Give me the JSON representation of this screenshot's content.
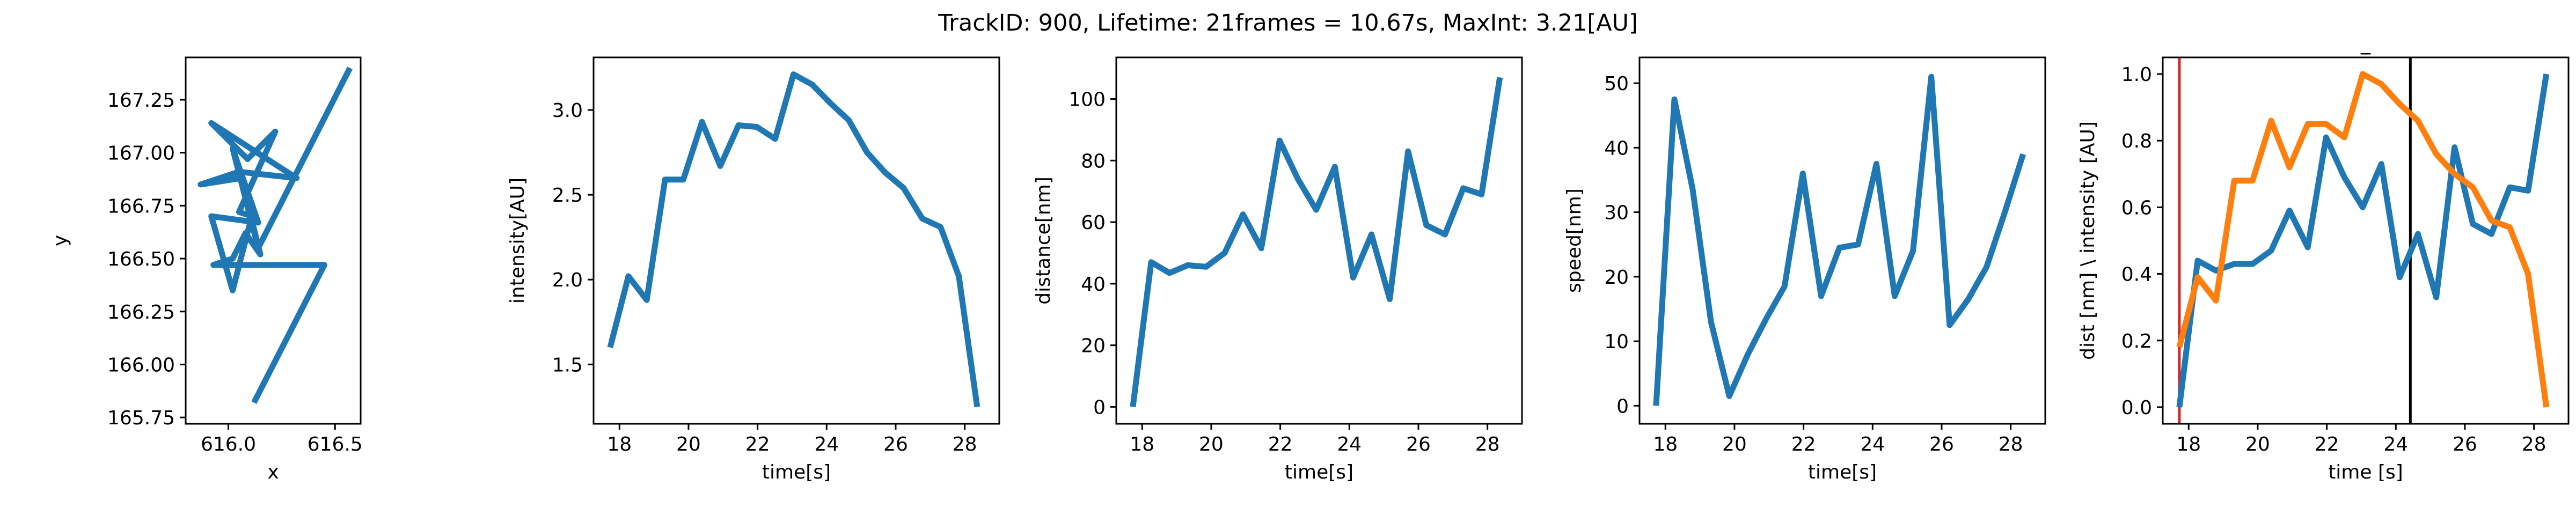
{
  "figure": {
    "title": "TrackID: 900, Lifetime: 21frames = 10.67s, MaxInt: 3.21[AU]"
  },
  "colors": {
    "blue": "#1f77b4",
    "orange": "#ff7f0e",
    "red": "#d62728",
    "black": "#000000"
  },
  "chart_data": [
    {
      "type": "line",
      "title": "",
      "xlabel": "x",
      "ylabel": "y",
      "xlim": [
        615.8,
        616.62
      ],
      "ylim": [
        165.72,
        167.45
      ],
      "xticks": [
        616.0,
        616.5
      ],
      "xtick_labels": [
        "616.0",
        "616.5"
      ],
      "yticks": [
        165.75,
        166.0,
        166.25,
        166.5,
        166.75,
        167.0,
        167.25
      ],
      "ytick_labels": [
        "165.75",
        "166.00",
        "166.25",
        "166.50",
        "166.75",
        "167.00",
        "167.25"
      ],
      "series": [
        {
          "color": "#1f77b4",
          "x": [
            616.12,
            616.45,
            615.93,
            616.02,
            616.08,
            616.15,
            616.06,
            615.87,
            616.05,
            616.32,
            615.92,
            616.09,
            616.22,
            616.05,
            616.11,
            616.02,
            615.92,
            616.14,
            616.02,
            616.14,
            616.57
          ],
          "y": [
            165.82,
            166.47,
            166.47,
            166.5,
            166.62,
            166.52,
            166.88,
            166.85,
            166.91,
            166.88,
            167.14,
            166.97,
            167.1,
            166.72,
            166.7,
            166.35,
            166.7,
            166.67,
            167.02,
            166.55,
            167.4
          ]
        }
      ]
    },
    {
      "type": "line",
      "title": "",
      "xlabel": "time[s]",
      "ylabel": "intensity[AU]",
      "xlim": [
        17.25,
        29.0
      ],
      "ylim": [
        1.15,
        3.31
      ],
      "xticks": [
        18,
        20,
        22,
        24,
        26,
        28
      ],
      "xtick_labels": [
        "18",
        "20",
        "22",
        "24",
        "26",
        "28"
      ],
      "yticks": [
        1.5,
        2.0,
        2.5,
        3.0
      ],
      "ytick_labels": [
        "1.5",
        "2.0",
        "2.5",
        "3.0"
      ],
      "series": [
        {
          "color": "#1f77b4",
          "x": [
            17.73,
            18.26,
            18.79,
            19.32,
            19.85,
            20.39,
            20.92,
            21.45,
            21.98,
            22.51,
            23.04,
            23.58,
            24.11,
            24.64,
            25.17,
            25.7,
            26.23,
            26.77,
            27.3,
            27.83,
            28.36
          ],
          "y": [
            1.6,
            2.02,
            1.88,
            2.59,
            2.59,
            2.93,
            2.67,
            2.91,
            2.9,
            2.83,
            3.21,
            3.15,
            3.04,
            2.94,
            2.75,
            2.63,
            2.54,
            2.36,
            2.31,
            2.02,
            1.25
          ]
        }
      ]
    },
    {
      "type": "line",
      "title": "",
      "xlabel": "time[s]",
      "ylabel": "distance[nm]",
      "xlim": [
        17.25,
        29.0
      ],
      "ylim": [
        -5.5,
        113.5
      ],
      "xticks": [
        18,
        20,
        22,
        24,
        26,
        28
      ],
      "xtick_labels": [
        "18",
        "20",
        "22",
        "24",
        "26",
        "28"
      ],
      "yticks": [
        0,
        20,
        40,
        60,
        80,
        100
      ],
      "ytick_labels": [
        "0",
        "20",
        "40",
        "60",
        "80",
        "100"
      ],
      "series": [
        {
          "color": "#1f77b4",
          "x": [
            17.73,
            18.26,
            18.79,
            19.32,
            19.85,
            20.39,
            20.92,
            21.45,
            21.98,
            22.51,
            23.04,
            23.58,
            24.11,
            24.64,
            25.17,
            25.7,
            26.23,
            26.77,
            27.3,
            27.83,
            28.36
          ],
          "y": [
            0,
            47,
            43.5,
            46,
            45.5,
            50,
            62.5,
            51.5,
            86.5,
            74,
            64,
            78,
            42,
            56,
            35,
            83,
            59,
            56,
            71,
            69,
            107
          ]
        }
      ]
    },
    {
      "type": "line",
      "title": "",
      "xlabel": "time[s]",
      "ylabel": "speed[nm]",
      "xlim": [
        17.25,
        29.0
      ],
      "ylim": [
        -2.8,
        54.0
      ],
      "xticks": [
        18,
        20,
        22,
        24,
        26,
        28
      ],
      "xtick_labels": [
        "18",
        "20",
        "22",
        "24",
        "26",
        "28"
      ],
      "yticks": [
        0,
        10,
        20,
        30,
        40,
        50
      ],
      "ytick_labels": [
        "0",
        "10",
        "20",
        "30",
        "40",
        "50"
      ],
      "series": [
        {
          "color": "#1f77b4",
          "x": [
            17.73,
            18.26,
            18.79,
            19.32,
            19.85,
            20.39,
            20.92,
            21.45,
            21.98,
            22.51,
            23.04,
            23.58,
            24.11,
            24.64,
            25.17,
            25.7,
            26.23,
            26.77,
            27.3,
            27.83,
            28.36
          ],
          "y": [
            0,
            47.5,
            33.5,
            13,
            1.5,
            8,
            13.5,
            18.5,
            36,
            17,
            24.5,
            25,
            37.5,
            17,
            24,
            51,
            12.5,
            16.5,
            21.5,
            30,
            39
          ]
        }
      ]
    },
    {
      "type": "line",
      "title": "_",
      "xlabel": "time [s]",
      "ylabel": "dist [nm] \\ intensity [AU]",
      "xlim": [
        17.25,
        29.0
      ],
      "ylim": [
        -0.05,
        1.05
      ],
      "xticks": [
        18,
        20,
        22,
        24,
        26,
        28
      ],
      "xtick_labels": [
        "18",
        "20",
        "22",
        "24",
        "26",
        "28"
      ],
      "yticks": [
        0.0,
        0.2,
        0.4,
        0.6,
        0.8,
        1.0
      ],
      "ytick_labels": [
        "0.0",
        "0.2",
        "0.4",
        "0.6",
        "0.8",
        "1.0"
      ],
      "vlines": [
        {
          "x": 17.73,
          "color": "#d62728"
        },
        {
          "x": 24.42,
          "color": "#000000"
        }
      ],
      "series": [
        {
          "color": "#1f77b4",
          "x": [
            17.73,
            18.26,
            18.79,
            19.32,
            19.85,
            20.39,
            20.92,
            21.45,
            21.98,
            22.51,
            23.04,
            23.58,
            24.11,
            24.64,
            25.17,
            25.7,
            26.23,
            26.77,
            27.3,
            27.83,
            28.36
          ],
          "y": [
            0.0,
            0.44,
            0.41,
            0.43,
            0.43,
            0.47,
            0.59,
            0.48,
            0.81,
            0.69,
            0.6,
            0.73,
            0.39,
            0.52,
            0.33,
            0.78,
            0.55,
            0.52,
            0.66,
            0.65,
            1.0
          ]
        },
        {
          "color": "#ff7f0e",
          "x": [
            17.73,
            18.26,
            18.79,
            19.32,
            19.85,
            20.39,
            20.92,
            21.45,
            21.98,
            22.51,
            23.04,
            23.58,
            24.11,
            24.64,
            25.17,
            25.7,
            26.23,
            26.77,
            27.3,
            27.83,
            28.36
          ],
          "y": [
            0.18,
            0.39,
            0.32,
            0.68,
            0.68,
            0.86,
            0.72,
            0.85,
            0.85,
            0.81,
            1.0,
            0.97,
            0.91,
            0.86,
            0.76,
            0.7,
            0.66,
            0.56,
            0.54,
            0.4,
            0.0
          ]
        }
      ]
    }
  ]
}
